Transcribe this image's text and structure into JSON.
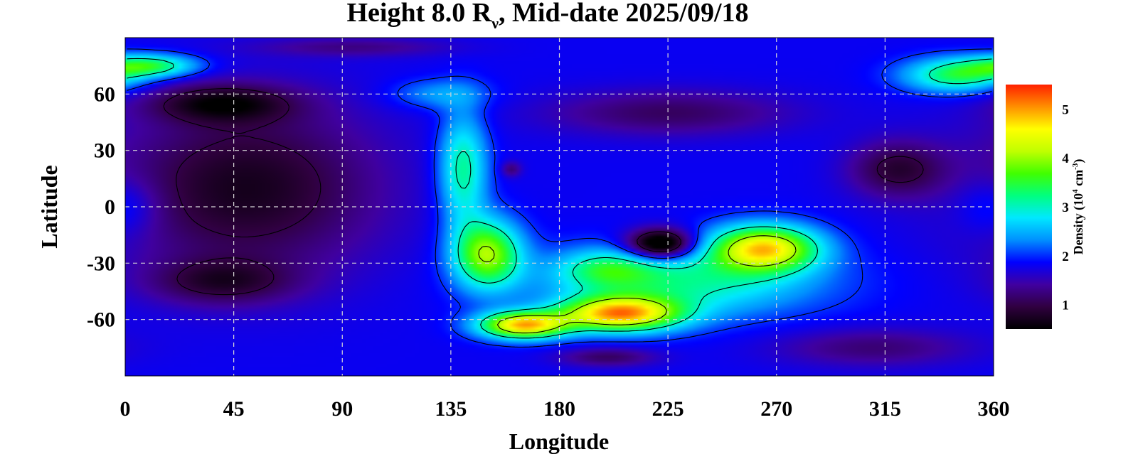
{
  "chart_data": {
    "type": "heatmap",
    "title_parts": {
      "prefix": "Height 8.0 R",
      "subscript": "ν",
      "suffix": ", Mid-date 2025/09/18"
    },
    "xlabel": "Longitude",
    "ylabel": "Latitude",
    "xlim": [
      0,
      360
    ],
    "ylim": [
      -90,
      90
    ],
    "xticks": [
      0,
      45,
      90,
      135,
      180,
      225,
      270,
      315,
      360
    ],
    "yticks": [
      60,
      30,
      0,
      -30,
      -60
    ],
    "grid": true,
    "colorbar": {
      "label_prefix": "Density (10",
      "label_exp": "4",
      "label_unit": " cm",
      "label_unit_exp": "-3",
      "label_suffix": ")",
      "range": [
        0.5,
        5.5
      ],
      "ticks": [
        1,
        2,
        3,
        4,
        5
      ],
      "colormap": "rainbow",
      "colors": [
        "#000000",
        "#300040",
        "#4000a0",
        "#0000ff",
        "#0090ff",
        "#00e8ff",
        "#00ff80",
        "#40ff00",
        "#c0ff00",
        "#ffff00",
        "#ff9000",
        "#ff2000"
      ]
    },
    "background_level": 1.8,
    "features": [
      {
        "lon": 50,
        "lat": 10,
        "rx": 55,
        "ry": 45,
        "value": -1.1
      },
      {
        "lon": 40,
        "lat": 55,
        "rx": 30,
        "ry": 10,
        "value": -1.0
      },
      {
        "lon": 40,
        "lat": -40,
        "rx": 30,
        "ry": 12,
        "value": -0.8
      },
      {
        "lon": 225,
        "lat": 50,
        "rx": 50,
        "ry": 12,
        "value": -0.7
      },
      {
        "lon": 320,
        "lat": 20,
        "rx": 20,
        "ry": 15,
        "value": -0.9
      },
      {
        "lon": 310,
        "lat": -75,
        "rx": 40,
        "ry": 10,
        "value": -0.6
      },
      {
        "lon": 10,
        "lat": 75,
        "rx": 20,
        "ry": 6,
        "value": 1.6
      },
      {
        "lon": 345,
        "lat": 70,
        "rx": 22,
        "ry": 9,
        "value": 1.6
      },
      {
        "lon": 140,
        "lat": 20,
        "rx": 10,
        "ry": 30,
        "value": 1.4
      },
      {
        "lon": 150,
        "lat": -25,
        "rx": 14,
        "ry": 18,
        "value": 2.2
      },
      {
        "lon": 165,
        "lat": -63,
        "rx": 18,
        "ry": 7,
        "value": 3.0
      },
      {
        "lon": 205,
        "lat": -57,
        "rx": 25,
        "ry": 9,
        "value": 3.0
      },
      {
        "lon": 200,
        "lat": -33,
        "rx": 20,
        "ry": 10,
        "value": 1.0
      },
      {
        "lon": 265,
        "lat": -22,
        "rx": 22,
        "ry": 12,
        "value": 2.8
      },
      {
        "lon": 230,
        "lat": -40,
        "rx": 55,
        "ry": 18,
        "value": 1.3
      },
      {
        "lon": 222,
        "lat": -20,
        "rx": 14,
        "ry": 8,
        "value": -2.0
      },
      {
        "lon": 160,
        "lat": 20,
        "rx": 4,
        "ry": 4,
        "value": -0.6
      },
      {
        "lon": 130,
        "lat": 60,
        "rx": 20,
        "ry": 8,
        "value": 0.6
      },
      {
        "lon": 200,
        "lat": -80,
        "rx": 20,
        "ry": 5,
        "value": -0.7
      },
      {
        "lon": 95,
        "lat": 85,
        "rx": 40,
        "ry": 5,
        "value": -0.5
      },
      {
        "lon": 360,
        "lat": 0,
        "rx": 15,
        "ry": 15,
        "value": 0.5
      }
    ],
    "contour_levels": [
      1,
      2,
      3,
      4
    ]
  }
}
